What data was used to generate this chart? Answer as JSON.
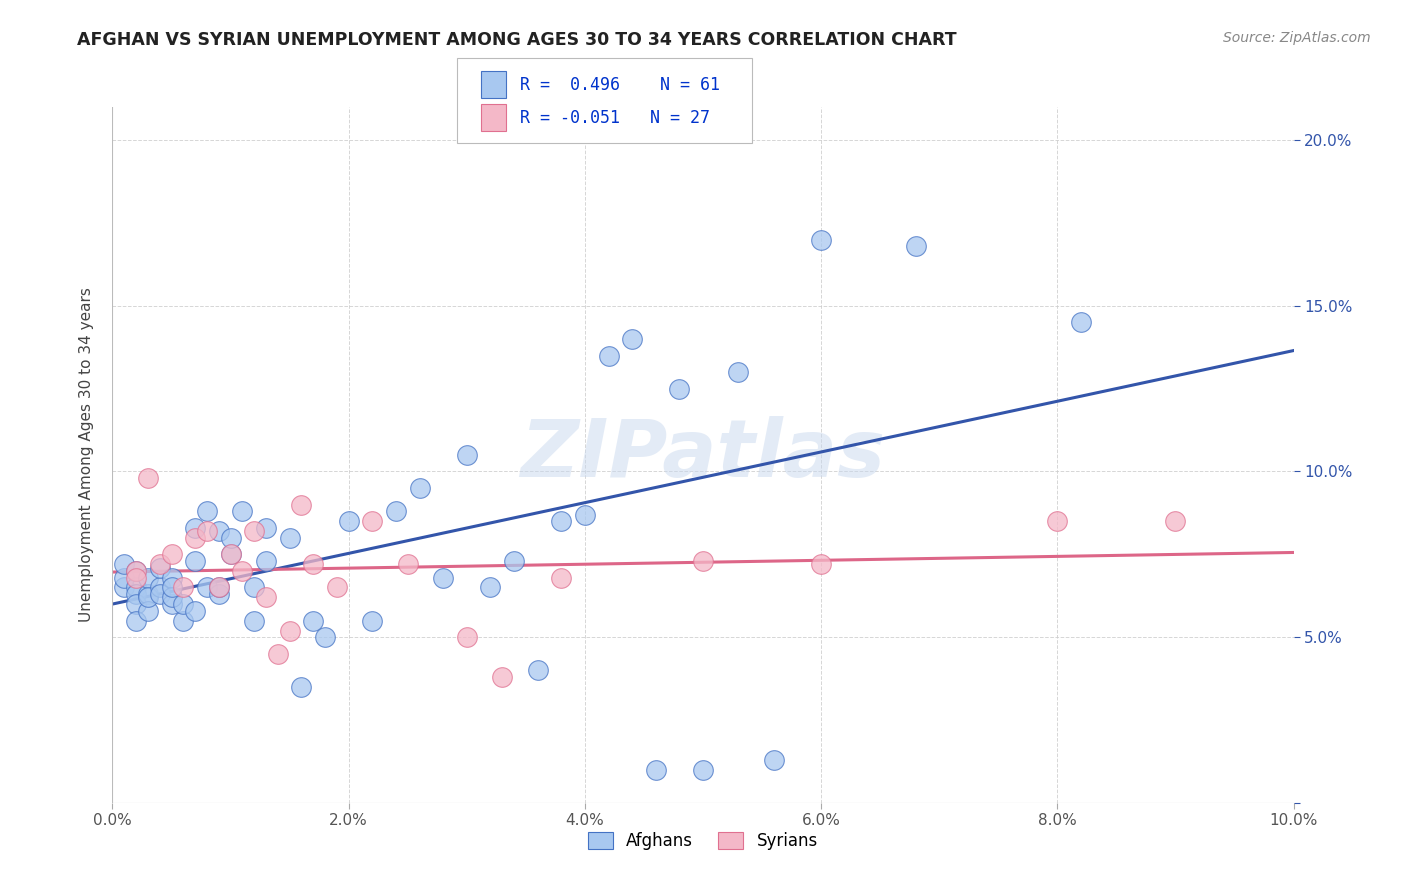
{
  "title": "AFGHAN VS SYRIAN UNEMPLOYMENT AMONG AGES 30 TO 34 YEARS CORRELATION CHART",
  "source": "Source: ZipAtlas.com",
  "ylabel": "Unemployment Among Ages 30 to 34 years",
  "xlim": [
    0.0,
    0.1
  ],
  "ylim": [
    0.0,
    0.21
  ],
  "xticks": [
    0.0,
    0.02,
    0.04,
    0.06,
    0.08,
    0.1
  ],
  "yticks": [
    0.0,
    0.05,
    0.1,
    0.15,
    0.2
  ],
  "xtick_labels": [
    "0.0%",
    "2.0%",
    "4.0%",
    "6.0%",
    "8.0%",
    "10.0%"
  ],
  "ytick_labels_right": [
    "",
    "5.0%",
    "10.0%",
    "15.0%",
    "20.0%"
  ],
  "afghan_color": "#A8C8F0",
  "afghan_edge_color": "#4472C4",
  "syrian_color": "#F4B8C8",
  "syrian_edge_color": "#E07090",
  "afghan_line_color": "#3355AA",
  "syrian_line_color": "#DD6688",
  "legend_r_afghan": "R =  0.496",
  "legend_n_afghan": "N = 61",
  "legend_r_syrian": "R = -0.051",
  "legend_n_syrian": "N = 27",
  "watermark": "ZIPatlas",
  "background_color": "#FFFFFF",
  "tick_color": "#3355AA",
  "afghan_x": [
    0.001,
    0.001,
    0.001,
    0.002,
    0.002,
    0.002,
    0.002,
    0.002,
    0.003,
    0.003,
    0.003,
    0.003,
    0.004,
    0.004,
    0.004,
    0.005,
    0.005,
    0.005,
    0.005,
    0.006,
    0.006,
    0.007,
    0.007,
    0.007,
    0.008,
    0.008,
    0.009,
    0.009,
    0.009,
    0.01,
    0.01,
    0.011,
    0.012,
    0.012,
    0.013,
    0.013,
    0.015,
    0.016,
    0.017,
    0.018,
    0.02,
    0.022,
    0.024,
    0.026,
    0.028,
    0.03,
    0.032,
    0.034,
    0.036,
    0.038,
    0.04,
    0.042,
    0.044,
    0.046,
    0.048,
    0.05,
    0.053,
    0.056,
    0.06,
    0.068,
    0.082
  ],
  "afghan_y": [
    0.065,
    0.068,
    0.072,
    0.065,
    0.07,
    0.063,
    0.06,
    0.055,
    0.063,
    0.068,
    0.058,
    0.062,
    0.065,
    0.071,
    0.063,
    0.06,
    0.068,
    0.062,
    0.065,
    0.055,
    0.06,
    0.083,
    0.073,
    0.058,
    0.088,
    0.065,
    0.063,
    0.082,
    0.065,
    0.075,
    0.08,
    0.088,
    0.055,
    0.065,
    0.083,
    0.073,
    0.08,
    0.035,
    0.055,
    0.05,
    0.085,
    0.055,
    0.088,
    0.095,
    0.068,
    0.105,
    0.065,
    0.073,
    0.04,
    0.085,
    0.087,
    0.135,
    0.14,
    0.01,
    0.125,
    0.01,
    0.13,
    0.013,
    0.17,
    0.168,
    0.145
  ],
  "syrian_x": [
    0.002,
    0.002,
    0.003,
    0.004,
    0.005,
    0.006,
    0.007,
    0.008,
    0.009,
    0.01,
    0.011,
    0.012,
    0.013,
    0.014,
    0.015,
    0.016,
    0.017,
    0.019,
    0.022,
    0.025,
    0.03,
    0.033,
    0.038,
    0.05,
    0.06,
    0.08,
    0.09
  ],
  "syrian_y": [
    0.07,
    0.068,
    0.098,
    0.072,
    0.075,
    0.065,
    0.08,
    0.082,
    0.065,
    0.075,
    0.07,
    0.082,
    0.062,
    0.045,
    0.052,
    0.09,
    0.072,
    0.065,
    0.085,
    0.072,
    0.05,
    0.038,
    0.068,
    0.073,
    0.072,
    0.085,
    0.085
  ]
}
